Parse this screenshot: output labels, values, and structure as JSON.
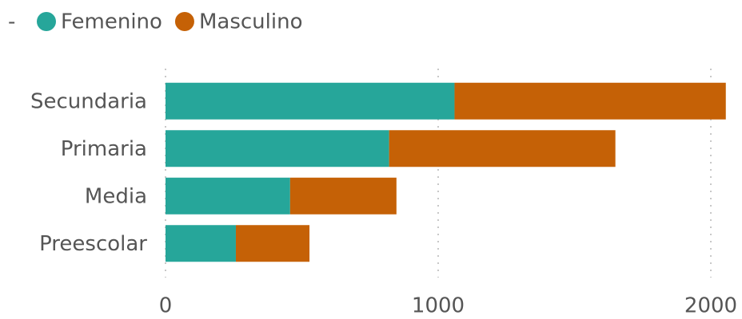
{
  "chart_data": {
    "type": "stacked_bar_horizontal",
    "legend_title": "-",
    "categories": [
      "Secundaria",
      "Primaria",
      "Media",
      "Preescolar"
    ],
    "series": [
      {
        "name": "Femenino",
        "color": "#26a69a",
        "values": [
          1060,
          820,
          457,
          258
        ]
      },
      {
        "name": "Masculino",
        "color": "#c56106",
        "values": [
          995,
          830,
          390,
          270
        ]
      }
    ],
    "xlim": [
      0,
      2060
    ],
    "xticks": [
      0,
      1000,
      2000
    ],
    "grid": true,
    "legend": "top-left"
  }
}
